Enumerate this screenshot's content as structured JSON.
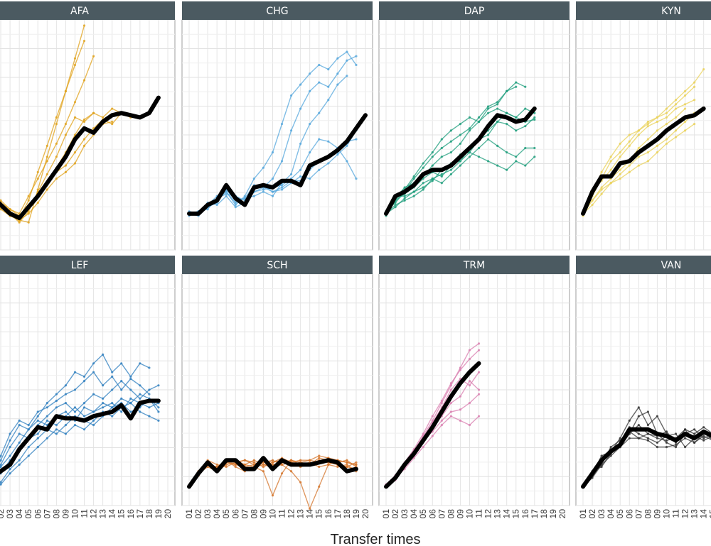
{
  "chart_data": {
    "type": "line",
    "xlabel": "Transfer times",
    "ylabel": "",
    "x_ticks": [
      "01",
      "02",
      "03",
      "04",
      "05",
      "06",
      "07",
      "08",
      "09",
      "10",
      "11",
      "12",
      "13",
      "14",
      "15",
      "16",
      "17",
      "18",
      "19",
      "20"
    ],
    "grid": true,
    "ylim": [
      0,
      1
    ],
    "panels": [
      {
        "name": "AFA",
        "color": "#e0a21b",
        "mean": [
          0.22,
          0.18,
          0.14,
          0.12,
          0.17,
          0.22,
          0.28,
          0.34,
          0.4,
          0.48,
          0.53,
          0.51,
          0.56,
          0.59,
          0.6,
          0.59,
          0.58,
          0.6,
          0.67
        ],
        "runs": [
          [
            0.2,
            0.18,
            0.15,
            0.11,
            0.1,
            0.25,
            0.4,
            0.55,
            0.7,
            0.85,
            1.0
          ],
          [
            0.2,
            0.16,
            0.13,
            0.12,
            0.2,
            0.33,
            0.45,
            0.58,
            0.7,
            0.82,
            0.93
          ],
          [
            0.22,
            0.19,
            0.16,
            0.14,
            0.22,
            0.3,
            0.38,
            0.46,
            0.55,
            0.65,
            0.75,
            0.86
          ],
          [
            0.21,
            0.18,
            0.14,
            0.1,
            0.15,
            0.24,
            0.32,
            0.4,
            0.5,
            0.58,
            0.56,
            0.6,
            0.58,
            0.62,
            0.6
          ],
          [
            0.23,
            0.19,
            0.15,
            0.12,
            0.18,
            0.22,
            0.28,
            0.33,
            0.36,
            0.42,
            0.48,
            0.53,
            0.57,
            0.55,
            0.6,
            0.58
          ],
          [
            0.22,
            0.17,
            0.13,
            0.11,
            0.14,
            0.19,
            0.25,
            0.3,
            0.33,
            0.37,
            0.45,
            0.5,
            0.55,
            0.56
          ],
          [
            0.24,
            0.2,
            0.16,
            0.13,
            0.17,
            0.23,
            0.27,
            0.35,
            0.42,
            0.5,
            0.57,
            0.6
          ]
        ]
      },
      {
        "name": "CHG",
        "color": "#56a7dc",
        "mean": [
          0.14,
          0.14,
          0.18,
          0.2,
          0.27,
          0.21,
          0.18,
          0.26,
          0.27,
          0.26,
          0.29,
          0.29,
          0.27,
          0.36,
          0.38,
          0.4,
          0.43,
          0.47,
          0.53,
          0.59
        ],
        "runs": [
          [
            0.14,
            0.15,
            0.18,
            0.22,
            0.24,
            0.18,
            0.22,
            0.3,
            0.35,
            0.42,
            0.55,
            0.68,
            0.73,
            0.78,
            0.82,
            0.8,
            0.85,
            0.88,
            0.82
          ],
          [
            0.14,
            0.13,
            0.17,
            0.19,
            0.26,
            0.22,
            0.18,
            0.24,
            0.26,
            0.3,
            0.38,
            0.52,
            0.62,
            0.7,
            0.74,
            0.72,
            0.78,
            0.84,
            0.86
          ],
          [
            0.14,
            0.15,
            0.16,
            0.21,
            0.25,
            0.2,
            0.21,
            0.22,
            0.24,
            0.22,
            0.28,
            0.32,
            0.46,
            0.55,
            0.6,
            0.66,
            0.73,
            0.77
          ],
          [
            0.15,
            0.14,
            0.19,
            0.18,
            0.22,
            0.17,
            0.19,
            0.24,
            0.25,
            0.26,
            0.27,
            0.3,
            0.34,
            0.42,
            0.48,
            0.47,
            0.44,
            0.38,
            0.3
          ],
          [
            0.14,
            0.14,
            0.18,
            0.2,
            0.24,
            0.19,
            0.21,
            0.27,
            0.26,
            0.24,
            0.25,
            0.28,
            0.31,
            0.3,
            0.34,
            0.37,
            0.41,
            0.45,
            0.52
          ],
          [
            0.13,
            0.15,
            0.17,
            0.21,
            0.23,
            0.22,
            0.2,
            0.25,
            0.27,
            0.24,
            0.26,
            0.29,
            0.29,
            0.34,
            0.38,
            0.4,
            0.42,
            0.47,
            0.48
          ]
        ]
      },
      {
        "name": "DAP",
        "color": "#1e9e7c",
        "mean": [
          0.14,
          0.22,
          0.24,
          0.27,
          0.32,
          0.34,
          0.34,
          0.36,
          0.4,
          0.44,
          0.48,
          0.54,
          0.59,
          0.58,
          0.56,
          0.57,
          0.62
        ],
        "runs": [
          [
            0.14,
            0.2,
            0.25,
            0.31,
            0.37,
            0.42,
            0.48,
            0.52,
            0.55,
            0.58,
            0.56,
            0.62,
            0.64,
            0.7,
            0.74,
            0.72
          ],
          [
            0.15,
            0.19,
            0.24,
            0.3,
            0.35,
            0.4,
            0.44,
            0.47,
            0.5,
            0.53,
            0.58,
            0.63,
            0.65,
            0.7,
            0.72
          ],
          [
            0.14,
            0.21,
            0.26,
            0.28,
            0.31,
            0.36,
            0.4,
            0.42,
            0.46,
            0.52,
            0.56,
            0.6,
            0.62,
            0.6,
            0.58,
            0.62,
            0.6
          ],
          [
            0.13,
            0.22,
            0.22,
            0.24,
            0.28,
            0.3,
            0.32,
            0.34,
            0.38,
            0.42,
            0.48,
            0.52,
            0.56,
            0.55,
            0.52,
            0.54,
            0.58
          ],
          [
            0.14,
            0.18,
            0.2,
            0.22,
            0.25,
            0.3,
            0.28,
            0.32,
            0.36,
            0.4,
            0.44,
            0.48,
            0.45,
            0.42,
            0.4,
            0.44,
            0.44
          ],
          [
            0.15,
            0.2,
            0.23,
            0.26,
            0.3,
            0.33,
            0.31,
            0.36,
            0.41,
            0.42,
            0.4,
            0.38,
            0.36,
            0.34,
            0.38,
            0.36,
            0.4
          ],
          [
            0.14,
            0.17,
            0.21,
            0.24,
            0.26,
            0.29,
            0.34,
            0.37,
            0.38,
            0.44,
            0.48,
            0.5,
            0.56,
            0.6,
            0.58,
            0.56,
            0.57
          ]
        ]
      },
      {
        "name": "KYN",
        "color": "#ead25a",
        "mean": [
          0.14,
          0.24,
          0.31,
          0.31,
          0.37,
          0.38,
          0.42,
          0.45,
          0.48,
          0.52,
          0.55,
          0.58,
          0.59,
          0.62
        ],
        "runs": [
          [
            0.15,
            0.22,
            0.3,
            0.38,
            0.42,
            0.47,
            0.52,
            0.56,
            0.58,
            0.62,
            0.66,
            0.7,
            0.74,
            0.8
          ],
          [
            0.14,
            0.23,
            0.33,
            0.4,
            0.46,
            0.5,
            0.52,
            0.55,
            0.58,
            0.6,
            0.64,
            0.68,
            0.72
          ],
          [
            0.13,
            0.24,
            0.29,
            0.34,
            0.4,
            0.45,
            0.5,
            0.54,
            0.56,
            0.58,
            0.62,
            0.64,
            0.66
          ],
          [
            0.15,
            0.2,
            0.26,
            0.3,
            0.34,
            0.38,
            0.44,
            0.48,
            0.52,
            0.55,
            0.58,
            0.62
          ],
          [
            0.14,
            0.18,
            0.23,
            0.28,
            0.32,
            0.36,
            0.4,
            0.42,
            0.45,
            0.48,
            0.52,
            0.56,
            0.6
          ],
          [
            0.14,
            0.2,
            0.25,
            0.28,
            0.3,
            0.33,
            0.36,
            0.38,
            0.42,
            0.46,
            0.49,
            0.52,
            0.55
          ]
        ]
      },
      {
        "name": "LEF",
        "color": "#2f7fbf",
        "mean": [
          0.1,
          0.13,
          0.16,
          0.23,
          0.28,
          0.33,
          0.32,
          0.38,
          0.37,
          0.37,
          0.36,
          0.38,
          0.39,
          0.4,
          0.43,
          0.37,
          0.44,
          0.45,
          0.45
        ],
        "runs": [
          [
            0.1,
            0.18,
            0.27,
            0.34,
            0.32,
            0.38,
            0.44,
            0.48,
            0.52,
            0.58,
            0.56,
            0.62,
            0.66,
            0.58,
            0.62,
            0.56,
            0.62,
            0.6
          ],
          [
            0.11,
            0.2,
            0.3,
            0.36,
            0.34,
            0.4,
            0.42,
            0.45,
            0.48,
            0.5,
            0.54,
            0.58,
            0.52,
            0.56,
            0.5,
            0.55,
            0.52,
            0.48
          ],
          [
            0.09,
            0.16,
            0.24,
            0.3,
            0.28,
            0.34,
            0.38,
            0.42,
            0.44,
            0.4,
            0.44,
            0.48,
            0.46,
            0.5,
            0.54,
            0.5,
            0.46,
            0.5,
            0.52
          ],
          [
            0.1,
            0.15,
            0.2,
            0.26,
            0.32,
            0.36,
            0.34,
            0.38,
            0.4,
            0.36,
            0.42,
            0.4,
            0.44,
            0.42,
            0.46,
            0.44,
            0.48,
            0.46,
            0.4
          ],
          [
            0.1,
            0.12,
            0.18,
            0.22,
            0.28,
            0.3,
            0.36,
            0.34,
            0.38,
            0.42,
            0.38,
            0.4,
            0.42,
            0.44,
            0.4,
            0.46,
            0.44,
            0.42,
            0.44
          ],
          [
            0.11,
            0.08,
            0.14,
            0.18,
            0.24,
            0.28,
            0.32,
            0.3,
            0.34,
            0.38,
            0.36,
            0.34,
            0.38,
            0.42,
            0.44,
            0.4,
            0.42,
            0.46,
            0.42
          ],
          [
            0.1,
            0.07,
            0.12,
            0.16,
            0.2,
            0.24,
            0.28,
            0.32,
            0.3,
            0.34,
            0.32,
            0.36,
            0.4,
            0.38,
            0.42,
            0.44,
            0.4,
            0.38,
            0.36
          ]
        ]
      },
      {
        "name": "SCH",
        "color": "#d4762c",
        "mean": [
          0.06,
          0.12,
          0.17,
          0.13,
          0.18,
          0.18,
          0.14,
          0.14,
          0.19,
          0.14,
          0.18,
          0.16,
          0.16,
          0.16,
          0.17,
          0.18,
          0.17,
          0.13,
          0.14
        ],
        "runs": [
          [
            0.06,
            0.12,
            0.16,
            0.14,
            0.17,
            0.16,
            0.15,
            0.16,
            0.18,
            0.17,
            0.18,
            0.16,
            0.17,
            0.18,
            0.2,
            0.19,
            0.18,
            0.17,
            0.16
          ],
          [
            0.06,
            0.11,
            0.17,
            0.14,
            0.18,
            0.15,
            0.13,
            0.15,
            0.13,
            0.02,
            0.12,
            0.18,
            0.17,
            0.16,
            0.18,
            0.17,
            0.16,
            0.15,
            0.14
          ],
          [
            0.06,
            0.12,
            0.15,
            0.13,
            0.16,
            0.17,
            0.18,
            0.16,
            0.17,
            0.18,
            0.16,
            0.13,
            0.08,
            -0.04,
            0.06,
            0.16,
            0.15,
            0.16,
            0.13
          ],
          [
            0.06,
            0.13,
            0.16,
            0.15,
            0.17,
            0.18,
            0.16,
            0.15,
            0.16,
            0.16,
            0.17,
            0.18,
            0.16,
            0.17,
            0.15,
            0.16,
            0.18,
            0.17,
            0.16
          ],
          [
            0.06,
            0.12,
            0.18,
            0.16,
            0.15,
            0.17,
            0.18,
            0.17,
            0.15,
            0.17,
            0.19,
            0.17,
            0.18,
            0.18,
            0.17,
            0.19,
            0.16,
            0.15,
            0.17
          ],
          [
            0.06,
            0.11,
            0.16,
            0.15,
            0.18,
            0.16,
            0.16,
            0.18,
            0.16,
            0.15,
            0.16,
            0.17,
            0.15,
            0.16,
            0.19,
            0.18,
            0.17,
            0.18,
            0.15
          ]
        ]
      },
      {
        "name": "TRM",
        "color": "#d97fb0",
        "mean": [
          0.06,
          0.1,
          0.16,
          0.21,
          0.27,
          0.33,
          0.4,
          0.47,
          0.53,
          0.58,
          0.62
        ],
        "runs": [
          [
            0.06,
            0.1,
            0.15,
            0.22,
            0.29,
            0.36,
            0.44,
            0.52,
            0.6,
            0.68,
            0.71
          ],
          [
            0.07,
            0.11,
            0.17,
            0.23,
            0.3,
            0.38,
            0.45,
            0.53,
            0.59,
            0.64,
            0.68
          ],
          [
            0.06,
            0.1,
            0.16,
            0.22,
            0.28,
            0.35,
            0.42,
            0.5,
            0.55,
            0.52,
            0.58
          ],
          [
            0.06,
            0.09,
            0.15,
            0.2,
            0.26,
            0.33,
            0.38,
            0.44,
            0.47,
            0.54,
            0.5
          ],
          [
            0.07,
            0.11,
            0.16,
            0.21,
            0.27,
            0.31,
            0.36,
            0.4,
            0.41,
            0.44,
            0.48
          ],
          [
            0.06,
            0.1,
            0.14,
            0.19,
            0.24,
            0.29,
            0.34,
            0.38,
            0.36,
            0.34,
            0.38
          ]
        ]
      },
      {
        "name": "VAN",
        "color": "#333333",
        "mean": [
          0.06,
          0.12,
          0.18,
          0.22,
          0.25,
          0.32,
          0.32,
          0.32,
          0.3,
          0.29,
          0.27,
          0.3,
          0.28,
          0.31,
          0.29
        ],
        "runs": [
          [
            0.06,
            0.12,
            0.18,
            0.22,
            0.28,
            0.36,
            0.42,
            0.34,
            0.38,
            0.3,
            0.28,
            0.32,
            0.26,
            0.3,
            0.28
          ],
          [
            0.06,
            0.1,
            0.16,
            0.2,
            0.24,
            0.3,
            0.38,
            0.4,
            0.3,
            0.26,
            0.24,
            0.3,
            0.32,
            0.28,
            0.3
          ],
          [
            0.06,
            0.13,
            0.15,
            0.21,
            0.26,
            0.33,
            0.3,
            0.28,
            0.26,
            0.29,
            0.3,
            0.24,
            0.28,
            0.31,
            0.27
          ],
          [
            0.06,
            0.11,
            0.17,
            0.23,
            0.24,
            0.28,
            0.28,
            0.3,
            0.28,
            0.27,
            0.28,
            0.3,
            0.29,
            0.27,
            0.29
          ],
          [
            0.06,
            0.12,
            0.2,
            0.22,
            0.25,
            0.3,
            0.34,
            0.3,
            0.29,
            0.31,
            0.26,
            0.32,
            0.3,
            0.33,
            0.3
          ],
          [
            0.06,
            0.12,
            0.16,
            0.24,
            0.27,
            0.31,
            0.28,
            0.27,
            0.24,
            0.24,
            0.25,
            0.28,
            0.26,
            0.29,
            0.27
          ]
        ]
      }
    ]
  }
}
